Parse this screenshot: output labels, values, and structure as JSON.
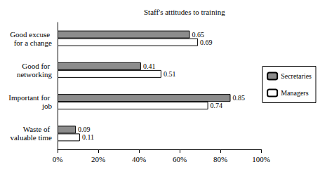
{
  "chart_data": {
    "type": "bar",
    "title": "Staff's attitudes to training",
    "orientation": "horizontal",
    "categories": [
      "Good excuse for a change",
      "Good for networking",
      "Important for job",
      "Waste of valuable time"
    ],
    "series": [
      {
        "name": "Secretaries",
        "color": "#8c8c8c",
        "values": [
          0.65,
          0.41,
          0.85,
          0.09
        ]
      },
      {
        "name": "Managers",
        "color": "#ffffff",
        "values": [
          0.69,
          0.51,
          0.74,
          0.11
        ]
      }
    ],
    "xlim": [
      0,
      1
    ],
    "xticks": [
      {
        "value": 0,
        "label": "0%"
      },
      {
        "value": 0.2,
        "label": "20%"
      },
      {
        "value": 0.4,
        "label": "40%"
      },
      {
        "value": 0.6,
        "label": "60%"
      },
      {
        "value": 0.8,
        "label": "80%"
      },
      {
        "value": 1,
        "label": "100%"
      }
    ],
    "grid": false,
    "legend": "right",
    "data_labels": true
  }
}
